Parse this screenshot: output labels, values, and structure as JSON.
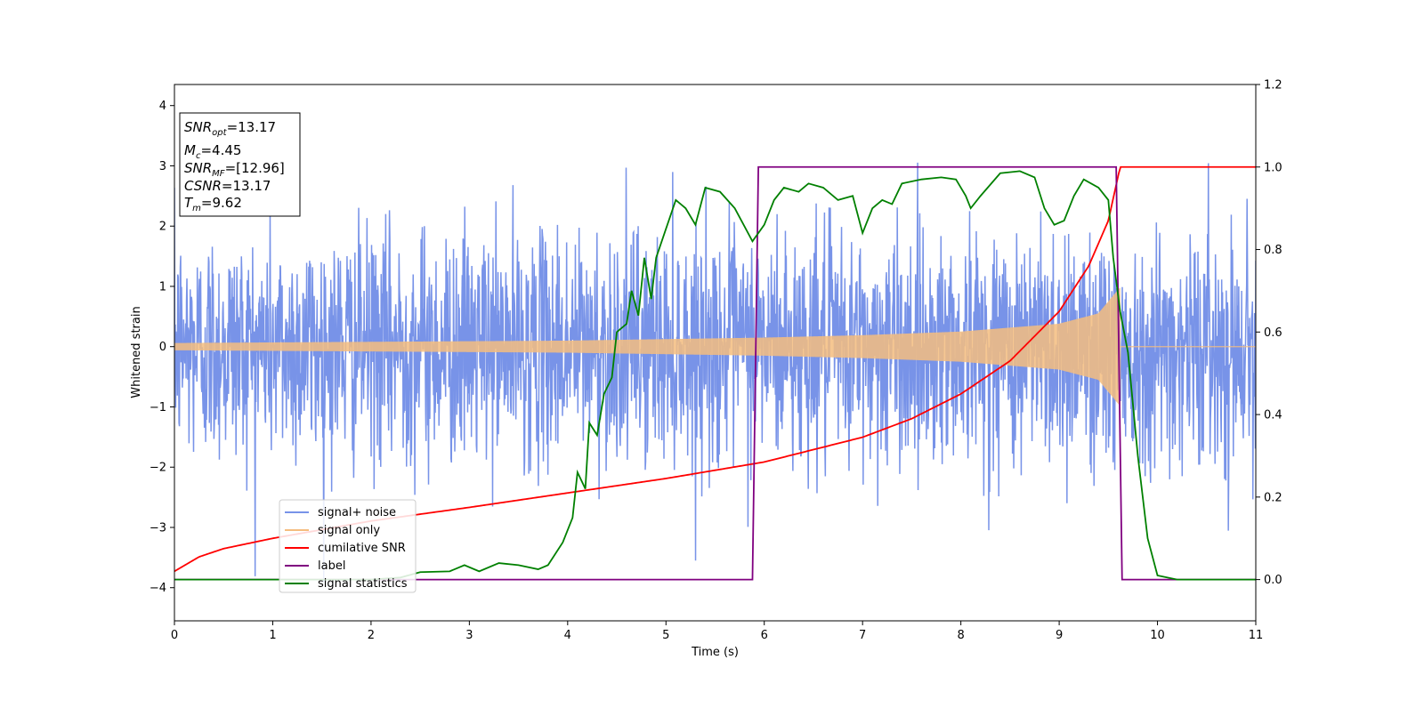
{
  "chart_data": {
    "type": "line",
    "xlabel": "Time (s)",
    "ylabel": "Whitened strain",
    "xlim": [
      0,
      11
    ],
    "ylim_left": [
      -4.55,
      4.35
    ],
    "ylim_right": [
      -0.1,
      1.2
    ],
    "xticks": [
      "0",
      "1",
      "2",
      "3",
      "4",
      "5",
      "6",
      "7",
      "8",
      "9",
      "10",
      "11"
    ],
    "yticks_left": [
      "−4",
      "−3",
      "−2",
      "−1",
      "0",
      "1",
      "2",
      "3",
      "4"
    ],
    "yticks_right": [
      "0.0",
      "0.2",
      "0.4",
      "0.6",
      "0.8",
      "1.0",
      "1.2"
    ],
    "grid": false,
    "legend_placement": "lower-left",
    "annotation": {
      "snr_opt": "=13.17",
      "mc": "=4.45",
      "snr_mf": "=[12.96]",
      "csnr": "=13.17",
      "tm": "=9.62"
    },
    "series": [
      {
        "name": "signal+ noise",
        "axis": "left",
        "color": "#7893e8",
        "description_values": "noise band approx ±2 with spikes up to ±4",
        "amplitude_sigma": 1.0
      },
      {
        "name": "signal only",
        "axis": "left",
        "color": "#f5bd7f",
        "chirp_end": 9.62,
        "envelope": [
          [
            0,
            0.06
          ],
          [
            2,
            0.08
          ],
          [
            4,
            0.1
          ],
          [
            6,
            0.15
          ],
          [
            7,
            0.19
          ],
          [
            8,
            0.25
          ],
          [
            9,
            0.38
          ],
          [
            9.4,
            0.55
          ],
          [
            9.62,
            0.98
          ]
        ]
      },
      {
        "name": "cumilative SNR",
        "axis": "right",
        "color": "#ff0000",
        "points": [
          [
            0,
            0.02
          ],
          [
            0.25,
            0.055
          ],
          [
            0.5,
            0.075
          ],
          [
            1,
            0.1
          ],
          [
            2,
            0.142
          ],
          [
            3,
            0.175
          ],
          [
            4,
            0.21
          ],
          [
            5,
            0.245
          ],
          [
            6,
            0.285
          ],
          [
            7,
            0.345
          ],
          [
            7.5,
            0.39
          ],
          [
            8,
            0.45
          ],
          [
            8.5,
            0.53
          ],
          [
            9,
            0.65
          ],
          [
            9.3,
            0.76
          ],
          [
            9.5,
            0.87
          ],
          [
            9.62,
            1.0
          ],
          [
            11,
            1.0
          ]
        ]
      },
      {
        "name": "label",
        "axis": "right",
        "color": "#800080",
        "points": [
          [
            0,
            0
          ],
          [
            5.88,
            0
          ],
          [
            5.94,
            1
          ],
          [
            9.58,
            1
          ],
          [
            9.64,
            0
          ],
          [
            11,
            0
          ]
        ]
      },
      {
        "name": "signal statistics",
        "axis": "right",
        "color": "#008000",
        "points": [
          [
            0,
            0.0
          ],
          [
            1,
            0.0
          ],
          [
            2,
            0.0
          ],
          [
            2.3,
            0.005
          ],
          [
            2.5,
            0.018
          ],
          [
            2.8,
            0.02
          ],
          [
            2.95,
            0.035
          ],
          [
            3.1,
            0.02
          ],
          [
            3.3,
            0.04
          ],
          [
            3.5,
            0.035
          ],
          [
            3.7,
            0.025
          ],
          [
            3.8,
            0.035
          ],
          [
            3.95,
            0.09
          ],
          [
            4.05,
            0.15
          ],
          [
            4.1,
            0.26
          ],
          [
            4.18,
            0.22
          ],
          [
            4.22,
            0.38
          ],
          [
            4.3,
            0.35
          ],
          [
            4.37,
            0.45
          ],
          [
            4.45,
            0.49
          ],
          [
            4.5,
            0.6
          ],
          [
            4.6,
            0.62
          ],
          [
            4.65,
            0.7
          ],
          [
            4.72,
            0.64
          ],
          [
            4.78,
            0.78
          ],
          [
            4.85,
            0.68
          ],
          [
            4.9,
            0.78
          ],
          [
            5.0,
            0.85
          ],
          [
            5.1,
            0.92
          ],
          [
            5.2,
            0.9
          ],
          [
            5.3,
            0.86
          ],
          [
            5.4,
            0.95
          ],
          [
            5.55,
            0.94
          ],
          [
            5.7,
            0.9
          ],
          [
            5.88,
            0.82
          ],
          [
            6.0,
            0.86
          ],
          [
            6.1,
            0.92
          ],
          [
            6.2,
            0.95
          ],
          [
            6.35,
            0.94
          ],
          [
            6.45,
            0.96
          ],
          [
            6.6,
            0.95
          ],
          [
            6.75,
            0.92
          ],
          [
            6.9,
            0.93
          ],
          [
            7.0,
            0.84
          ],
          [
            7.1,
            0.9
          ],
          [
            7.2,
            0.92
          ],
          [
            7.3,
            0.91
          ],
          [
            7.4,
            0.96
          ],
          [
            7.6,
            0.97
          ],
          [
            7.8,
            0.975
          ],
          [
            7.95,
            0.97
          ],
          [
            8.05,
            0.93
          ],
          [
            8.1,
            0.9
          ],
          [
            8.2,
            0.93
          ],
          [
            8.4,
            0.985
          ],
          [
            8.6,
            0.99
          ],
          [
            8.75,
            0.975
          ],
          [
            8.85,
            0.9
          ],
          [
            8.95,
            0.86
          ],
          [
            9.05,
            0.87
          ],
          [
            9.15,
            0.93
          ],
          [
            9.25,
            0.97
          ],
          [
            9.4,
            0.95
          ],
          [
            9.5,
            0.92
          ],
          [
            9.55,
            0.78
          ],
          [
            9.62,
            0.65
          ],
          [
            9.7,
            0.55
          ],
          [
            9.8,
            0.3
          ],
          [
            9.9,
            0.1
          ],
          [
            10.0,
            0.01
          ],
          [
            10.2,
            0.0
          ],
          [
            11,
            0.0
          ]
        ]
      }
    ]
  }
}
